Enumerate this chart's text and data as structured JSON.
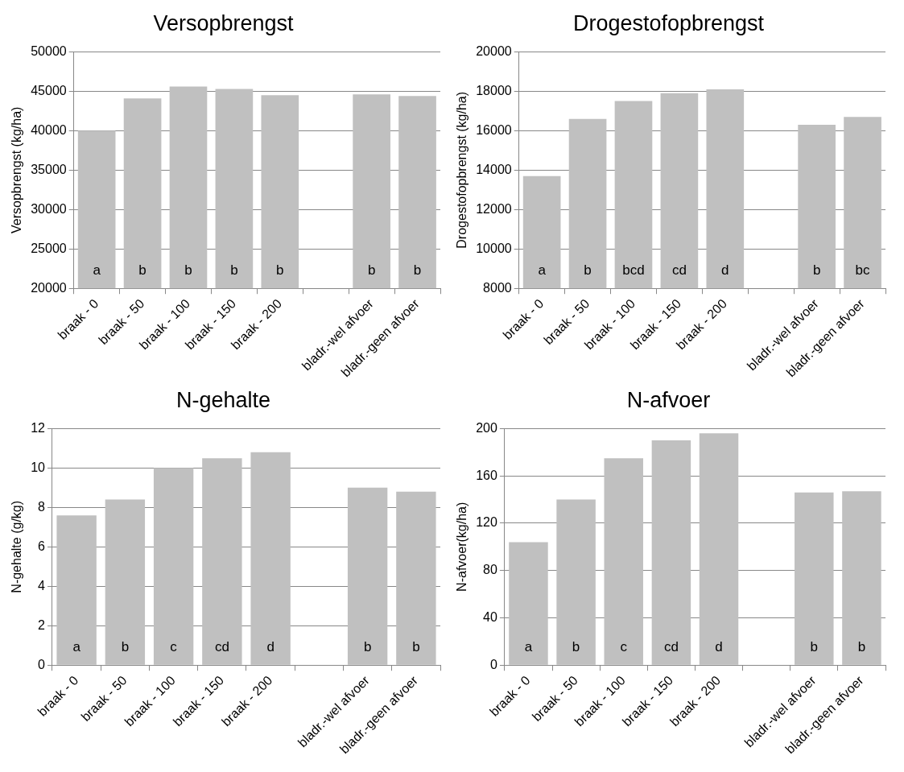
{
  "chart_data": [
    {
      "type": "bar",
      "title": "Versopbrengst",
      "ylabel": "Versopbrengst (kg/ha)",
      "categories": [
        "braak - 0",
        "braak - 50",
        "braak - 100",
        "braak - 150",
        "braak - 200",
        null,
        "bladr.-wel afvoer",
        "bladr.-geen afvoer"
      ],
      "values": [
        40000,
        44100,
        45600,
        45300,
        44500,
        null,
        44600,
        44400
      ],
      "color": "#c0c0c0",
      "ylim": [
        20000,
        50000
      ],
      "yticks": [
        20000,
        25000,
        30000,
        35000,
        40000,
        45000,
        50000
      ],
      "grid": "y",
      "annotations": [
        "a",
        "b",
        "b",
        "b",
        "b",
        "b",
        "b"
      ]
    },
    {
      "type": "bar",
      "title": "Drogestofopbrengst",
      "ylabel": "Drogestofopbrengst (kg/ha)",
      "categories": [
        "braak - 0",
        "braak - 50",
        "braak - 100",
        "braak - 150",
        "braak - 200",
        null,
        "bladr.-wel afvoer",
        "bladr.-geen afvoer"
      ],
      "values": [
        13700,
        16600,
        17500,
        17900,
        18100,
        null,
        16300,
        16700
      ],
      "color": "#c0c0c0",
      "ylim": [
        8000,
        20000
      ],
      "yticks": [
        8000,
        10000,
        12000,
        14000,
        16000,
        18000,
        20000
      ],
      "grid": "y",
      "annotations": [
        "a",
        "b",
        "bcd",
        "cd",
        "d",
        "b",
        "bc"
      ]
    },
    {
      "type": "bar",
      "title": "N-gehalte",
      "ylabel": "N-gehalte (g/kg)",
      "categories": [
        "braak - 0",
        "braak - 50",
        "braak - 100",
        "braak - 150",
        "braak - 200",
        null,
        "bladr.-wel afvoer",
        "bladr.-geen afvoer"
      ],
      "values": [
        7.6,
        8.4,
        10.0,
        10.5,
        10.8,
        null,
        9.0,
        8.8
      ],
      "color": "#c0c0c0",
      "ylim": [
        0,
        12
      ],
      "yticks": [
        0,
        2,
        4,
        6,
        8,
        10,
        12
      ],
      "grid": "y",
      "annotations": [
        "a",
        "b",
        "c",
        "cd",
        "d",
        "b",
        "b"
      ]
    },
    {
      "type": "bar",
      "title": "N-afvoer",
      "ylabel": "N-afvoer(kg/ha)",
      "categories": [
        "braak - 0",
        "braak - 50",
        "braak - 100",
        "braak - 150",
        "braak - 200",
        null,
        "bladr.-wel afvoer",
        "bladr.-geen afvoer"
      ],
      "values": [
        104,
        140,
        175,
        190,
        196,
        null,
        146,
        147
      ],
      "color": "#c0c0c0",
      "ylim": [
        0,
        200
      ],
      "yticks": [
        0,
        40,
        80,
        120,
        160,
        200
      ],
      "grid": "y",
      "annotations": [
        "a",
        "b",
        "c",
        "cd",
        "d",
        "b",
        "b"
      ]
    }
  ]
}
